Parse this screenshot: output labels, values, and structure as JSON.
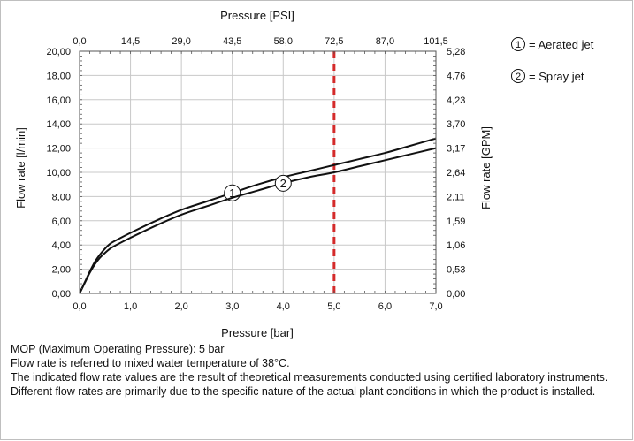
{
  "chart_data": {
    "type": "line",
    "x_label": "Pressure [bar]",
    "x_ticks": [
      "0,0",
      "1,0",
      "2,0",
      "3,0",
      "4,0",
      "5,0",
      "6,0",
      "7,0"
    ],
    "xlim": [
      0,
      7
    ],
    "x2_label": "Pressure [PSI]",
    "x2_ticks": [
      "0,0",
      "14,5",
      "29,0",
      "43,5",
      "58,0",
      "72,5",
      "87,0",
      "101,5"
    ],
    "y_label": "Flow rate [l/min]",
    "y_ticks": [
      "0,00",
      "2,00",
      "4,00",
      "6,00",
      "8,00",
      "10,00",
      "12,00",
      "14,00",
      "16,00",
      "18,00",
      "20,00"
    ],
    "ylim": [
      0,
      20
    ],
    "y2_label": "Flow rate [GPM]",
    "y2_ticks": [
      "0,00",
      "0,53",
      "1,06",
      "1,59",
      "2,11",
      "2,64",
      "3,17",
      "3,70",
      "4,23",
      "4,76",
      "5,28"
    ],
    "grid": true,
    "vline": {
      "x": 5.0,
      "color": "#d42a2a",
      "style": "dashed"
    },
    "series": [
      {
        "name": "Aerated jet",
        "marker": "1",
        "marker_at": 3.0,
        "x": [
          0,
          0.1,
          0.2,
          0.3,
          0.4,
          0.5,
          0.6,
          0.7,
          1.0,
          1.5,
          2.0,
          2.5,
          3.0,
          3.5,
          4.0,
          4.5,
          5.0,
          5.5,
          6.0,
          6.5,
          7.0
        ],
        "y": [
          0,
          0.9,
          1.8,
          2.6,
          3.2,
          3.7,
          4.1,
          4.35,
          5.0,
          6.0,
          6.9,
          7.6,
          8.3,
          9.0,
          9.6,
          10.1,
          10.6,
          11.1,
          11.6,
          12.2,
          12.8
        ]
      },
      {
        "name": "Spray jet",
        "marker": "2",
        "marker_at": 4.0,
        "x": [
          0,
          0.1,
          0.2,
          0.3,
          0.4,
          0.5,
          0.6,
          0.7,
          1.0,
          1.5,
          2.0,
          2.5,
          3.0,
          3.5,
          4.0,
          4.5,
          5.0,
          5.5,
          6.0,
          6.5,
          7.0
        ],
        "y": [
          0,
          0.85,
          1.7,
          2.4,
          2.95,
          3.35,
          3.7,
          3.95,
          4.6,
          5.6,
          6.5,
          7.2,
          7.9,
          8.5,
          9.1,
          9.6,
          10.0,
          10.5,
          11.0,
          11.5,
          12.0
        ]
      }
    ],
    "legend": [
      {
        "marker": "1",
        "text": "= Aerated jet"
      },
      {
        "marker": "2",
        "text": "= Spray jet"
      }
    ],
    "legend_position": "right"
  },
  "notes": [
    "MOP (Maximum Operating Pressure): 5 bar",
    "Flow rate is referred to mixed water temperature of 38°C.",
    "The indicated flow rate values are the result of theoretical measurements conducted using certified laboratory instruments.",
    "Different flow rates are primarily due to the specific nature of the actual plant conditions in which the product is installed."
  ],
  "colors": {
    "curve": "#111111",
    "grid": "#c8c8c8",
    "vline": "#d42a2a"
  }
}
